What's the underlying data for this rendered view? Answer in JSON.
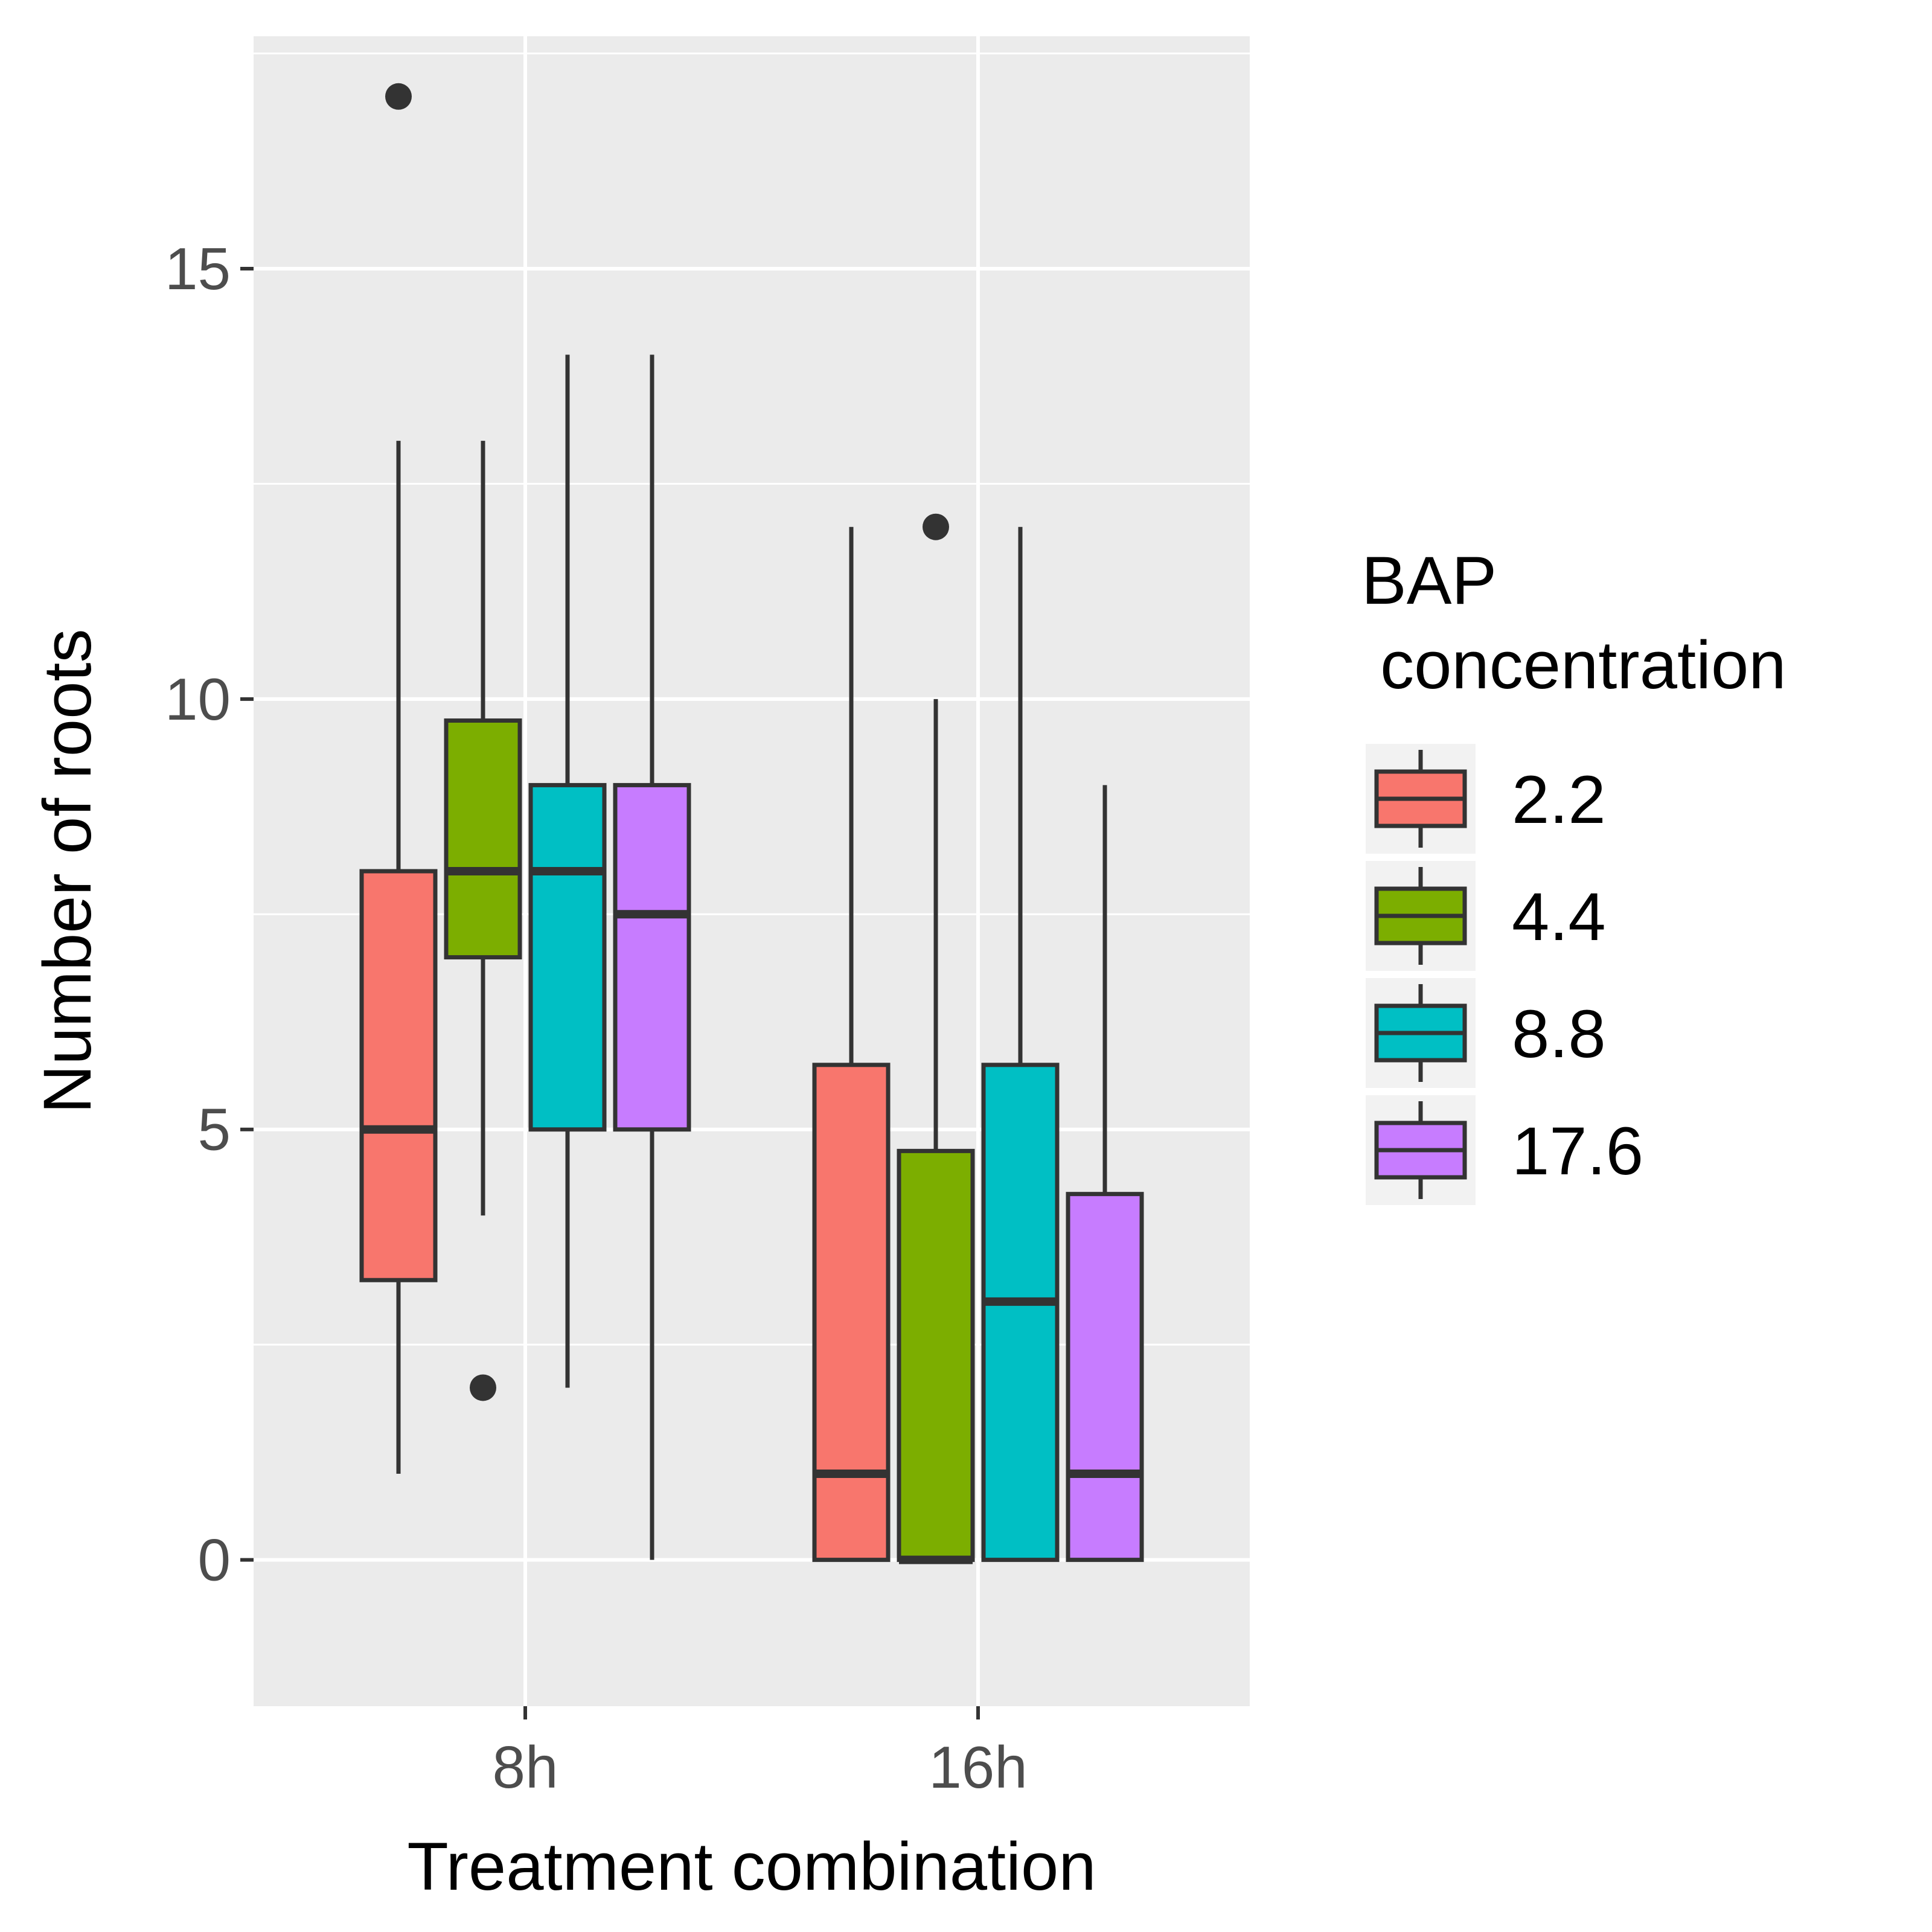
{
  "chart_data": {
    "type": "boxplot",
    "title": "",
    "xlabel": "Treatment combination",
    "ylabel": "Number of roots",
    "categories": [
      "8h",
      "16h"
    ],
    "ylim": [
      -1.7,
      17.7
    ],
    "yticks": [
      0,
      5,
      10,
      15
    ],
    "ytick_labels": [
      "0",
      "5",
      "10",
      "15"
    ],
    "grid": true,
    "legend": {
      "title_line1": "BAP",
      "title_line2": " concentration",
      "position": "right"
    },
    "series": [
      {
        "name": "2.2",
        "color": "#F8766D",
        "boxes": [
          {
            "category": "8h",
            "whisker_low": 1,
            "q1": 3.25,
            "median": 5,
            "q3": 8,
            "whisker_high": 13,
            "outliers": [
              17
            ]
          },
          {
            "category": "16h",
            "whisker_low": 0,
            "q1": 0,
            "median": 1,
            "q3": 5.75,
            "whisker_high": 12,
            "outliers": []
          }
        ]
      },
      {
        "name": "4.4",
        "color": "#7CAE00",
        "boxes": [
          {
            "category": "8h",
            "whisker_low": 4,
            "q1": 7,
            "median": 8,
            "q3": 9.75,
            "whisker_high": 13,
            "outliers": [
              2
            ]
          },
          {
            "category": "16h",
            "whisker_low": 0,
            "q1": 0,
            "median": 0,
            "q3": 4.75,
            "whisker_high": 10,
            "outliers": [
              12
            ]
          }
        ]
      },
      {
        "name": "8.8",
        "color": "#00BFC4",
        "boxes": [
          {
            "category": "8h",
            "whisker_low": 2,
            "q1": 5,
            "median": 8,
            "q3": 9,
            "whisker_high": 14,
            "outliers": []
          },
          {
            "category": "16h",
            "whisker_low": 0,
            "q1": 0,
            "median": 3,
            "q3": 5.75,
            "whisker_high": 12,
            "outliers": []
          }
        ]
      },
      {
        "name": "17.6",
        "color": "#C77CFF",
        "boxes": [
          {
            "category": "8h",
            "whisker_low": 0,
            "q1": 5,
            "median": 7.5,
            "q3": 9,
            "whisker_high": 14,
            "outliers": []
          },
          {
            "category": "16h",
            "whisker_low": 0,
            "q1": 0,
            "median": 1,
            "q3": 4.25,
            "whisker_high": 9,
            "outliers": []
          }
        ]
      }
    ]
  }
}
